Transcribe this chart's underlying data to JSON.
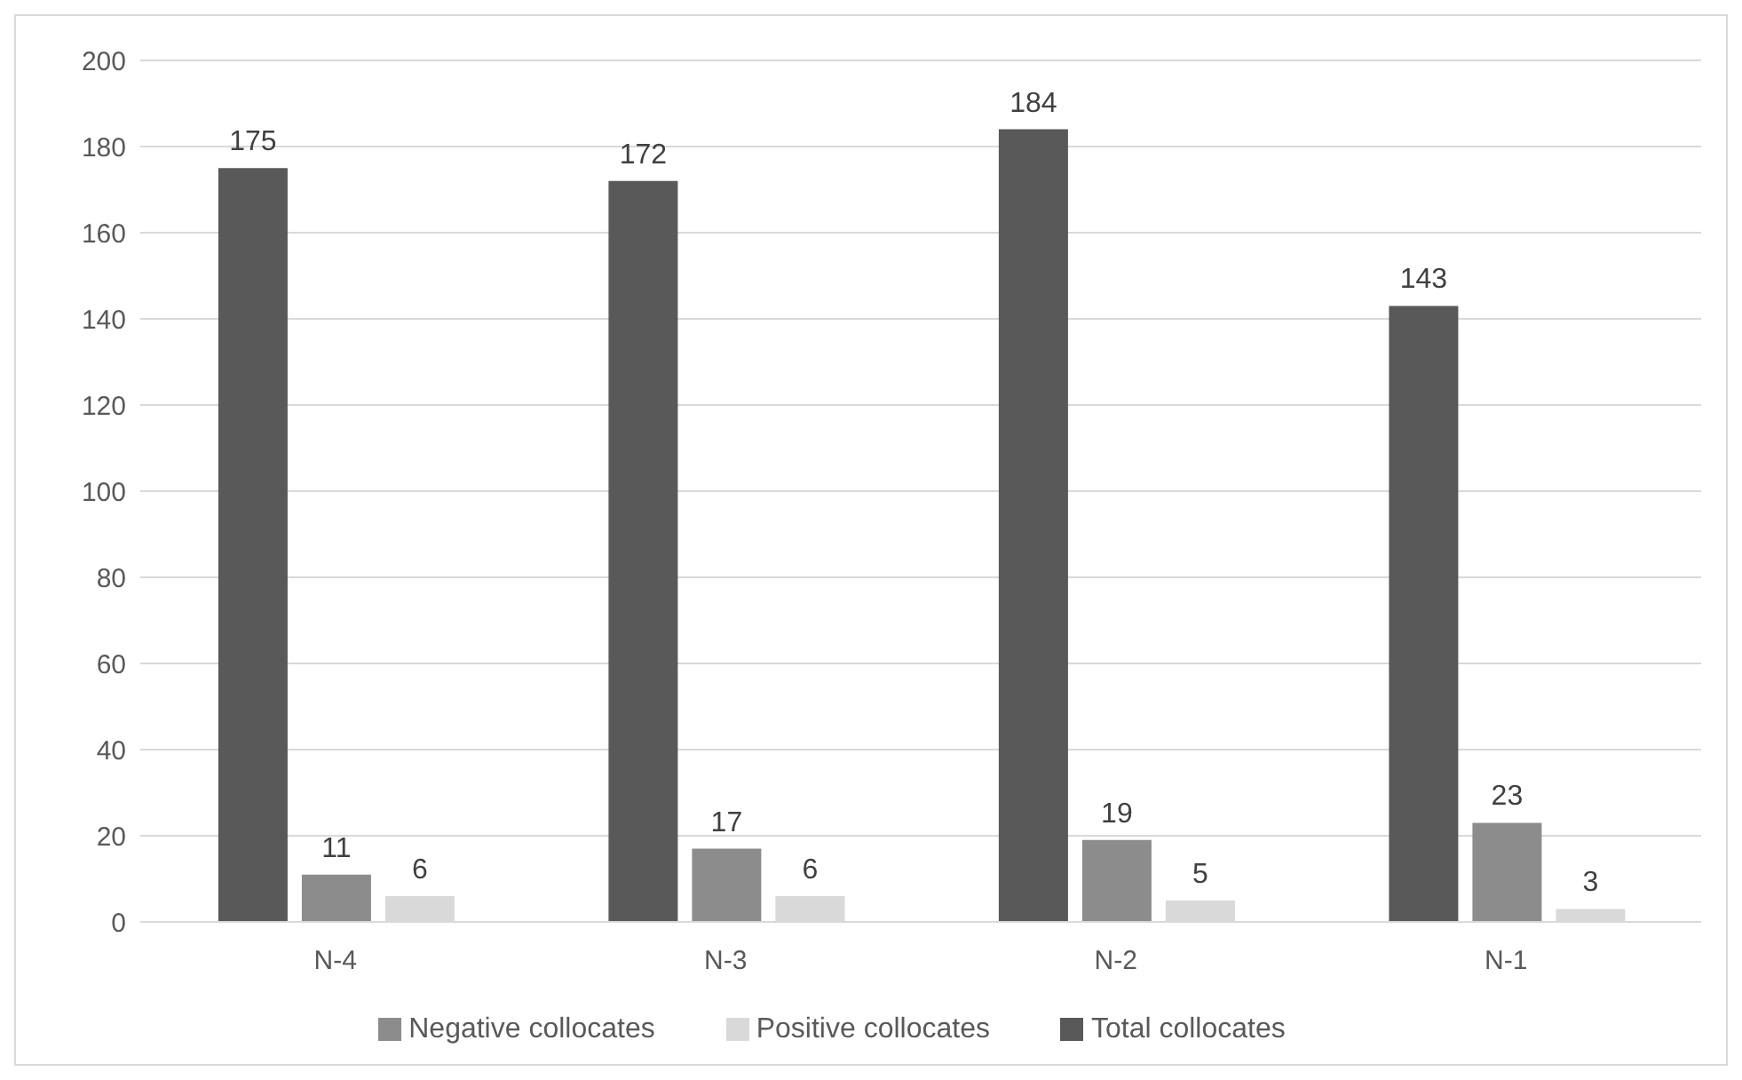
{
  "chart_data": {
    "type": "bar",
    "categories": [
      "N-4",
      "N-3",
      "N-2",
      "N-1"
    ],
    "series": [
      {
        "name": "Total collocates",
        "color": "#595959",
        "values": [
          175,
          172,
          184,
          143
        ]
      },
      {
        "name": "Negative collocates",
        "color": "#8c8c8c",
        "values": [
          11,
          17,
          19,
          23
        ]
      },
      {
        "name": "Positive collocates",
        "color": "#d9d9d9",
        "values": [
          6,
          6,
          5,
          3
        ]
      }
    ],
    "ylim": [
      0,
      200
    ],
    "yticks": [
      0,
      20,
      40,
      60,
      80,
      100,
      120,
      140,
      160,
      180,
      200
    ],
    "grid": "y",
    "legend": "bottom",
    "data_labels": true
  }
}
